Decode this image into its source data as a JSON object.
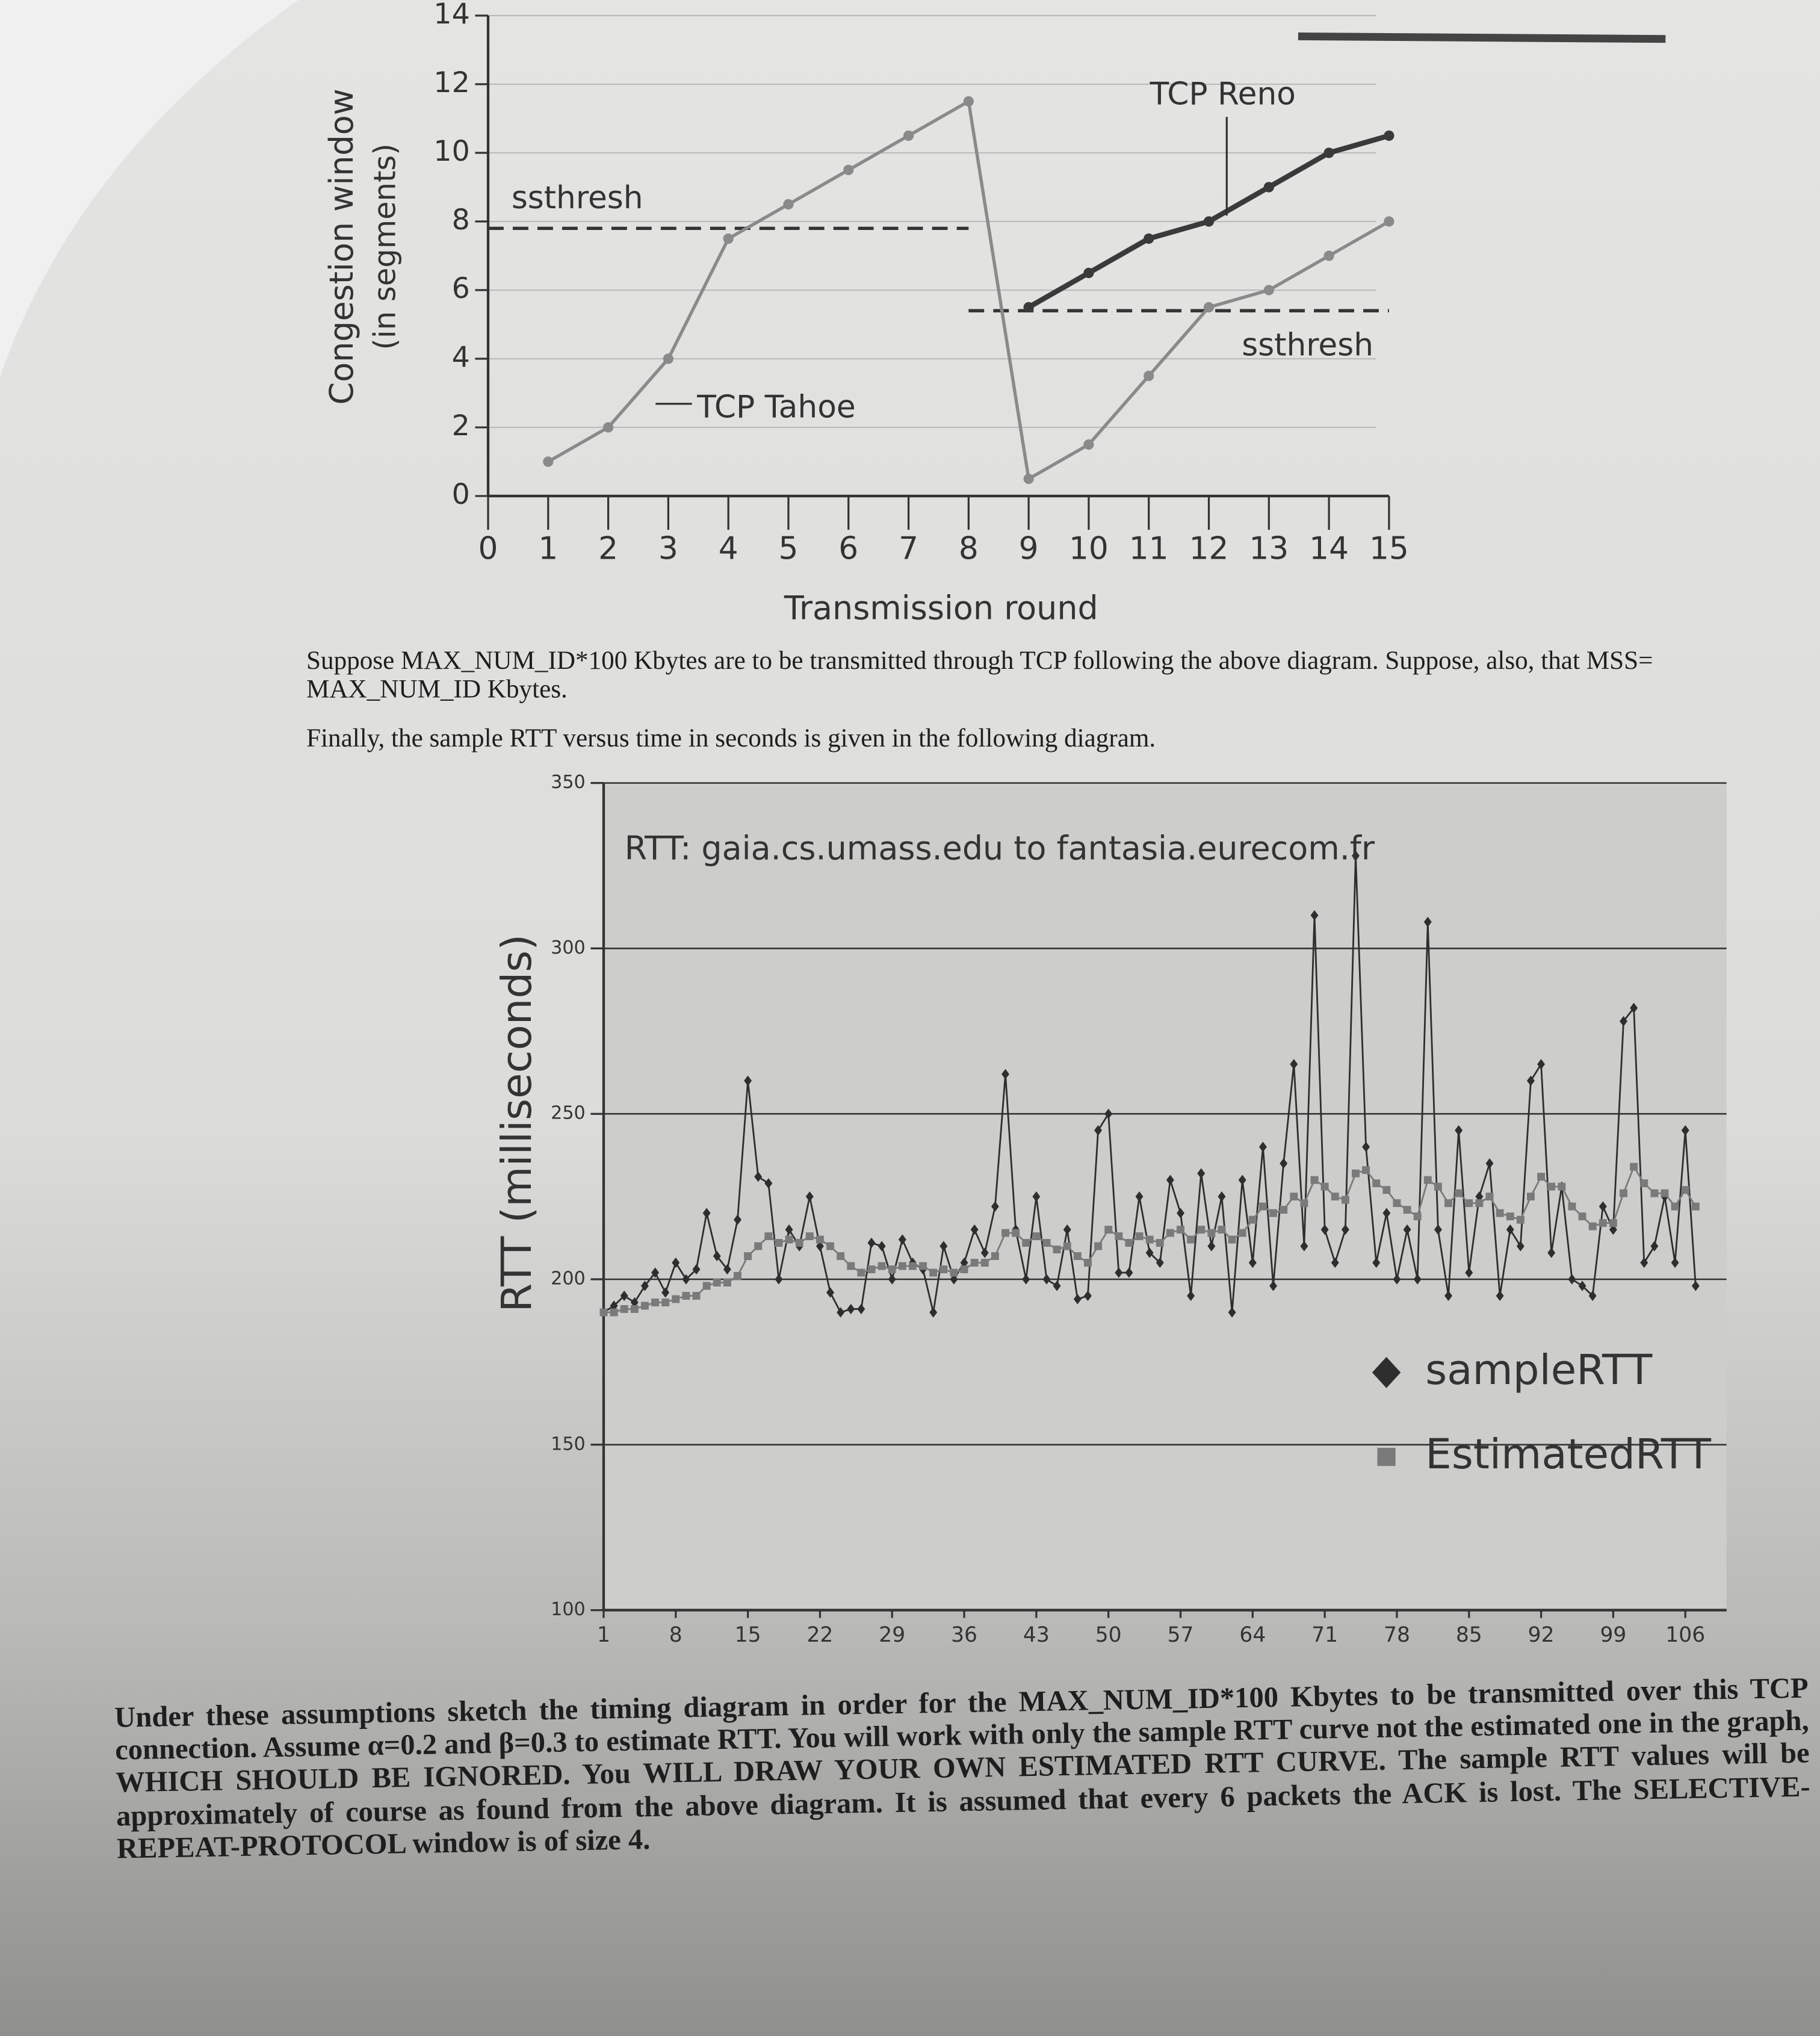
{
  "chart_data": [
    {
      "type": "line",
      "xlabel": "Transmission round",
      "ylabel": [
        "Congestion window",
        "(in segments)"
      ],
      "xlim": [
        0,
        15
      ],
      "xticks": [
        0,
        1,
        2,
        3,
        4,
        5,
        6,
        7,
        8,
        9,
        10,
        11,
        12,
        13,
        14,
        15
      ],
      "ylim": [
        0,
        14
      ],
      "yticks": [
        0,
        2,
        4,
        6,
        8,
        10,
        12,
        14
      ],
      "grid": true,
      "series": [
        {
          "name": "TCP Tahoe",
          "color": "#8a8a8a",
          "x": [
            1,
            2,
            3,
            4,
            5,
            6,
            7,
            8,
            9,
            10,
            11,
            12,
            13,
            14,
            15
          ],
          "values": [
            1,
            2,
            4,
            7.5,
            8.5,
            9.5,
            10.5,
            11.5,
            0.5,
            1.5,
            3.5,
            5.5,
            6,
            7,
            8
          ]
        },
        {
          "name": "TCP Reno",
          "color": "#3a3a3a",
          "x": [
            9,
            10,
            11,
            12,
            13,
            14,
            15
          ],
          "values": [
            5.5,
            6.5,
            7.5,
            8,
            9,
            10,
            10.5
          ]
        }
      ],
      "ssthresh_lines": [
        {
          "label": "ssthresh",
          "y": 7.8,
          "x": [
            0,
            8
          ]
        },
        {
          "label": "ssthresh",
          "y": 5.4,
          "x": [
            8,
            15
          ]
        }
      ]
    },
    {
      "type": "line",
      "title": "RTT: gaia.cs.umass.edu to fantasia.eurecom.fr",
      "ylabel": "RTT (milliseconds)",
      "xlim": [
        1,
        110
      ],
      "xticks": [
        1,
        8,
        15,
        22,
        29,
        36,
        43,
        50,
        57,
        64,
        71,
        78,
        85,
        92,
        99,
        106
      ],
      "ylim": [
        100,
        350
      ],
      "yticks": [
        100,
        150,
        200,
        250,
        300,
        350
      ],
      "grid": true,
      "legend": "right",
      "x": [
        1,
        2,
        3,
        4,
        5,
        6,
        7,
        8,
        9,
        10,
        11,
        12,
        13,
        14,
        15,
        16,
        17,
        18,
        19,
        20,
        21,
        22,
        23,
        24,
        25,
        26,
        27,
        28,
        29,
        30,
        31,
        32,
        33,
        34,
        35,
        36,
        37,
        38,
        39,
        40,
        41,
        42,
        43,
        44,
        45,
        46,
        47,
        48,
        49,
        50,
        51,
        52,
        53,
        54,
        55,
        56,
        57,
        58,
        59,
        60,
        61,
        62,
        63,
        64,
        65,
        66,
        67,
        68,
        69,
        70,
        71,
        72,
        73,
        74,
        75,
        76,
        77,
        78,
        79,
        80,
        81,
        82,
        83,
        84,
        85,
        86,
        87,
        88,
        89,
        90,
        91,
        92,
        93,
        94,
        95,
        96,
        97,
        98,
        99,
        100,
        101,
        102,
        103,
        104,
        105,
        106,
        107
      ],
      "series": [
        {
          "name": "sampleRTT",
          "color": "#2e2e2e",
          "marker": "diamond",
          "values": [
            190,
            192,
            195,
            193,
            198,
            202,
            196,
            205,
            200,
            203,
            220,
            207,
            203,
            218,
            260,
            231,
            229,
            200,
            215,
            210,
            225,
            210,
            196,
            190,
            191,
            191,
            211,
            210,
            200,
            212,
            205,
            203,
            190,
            210,
            200,
            205,
            215,
            208,
            222,
            262,
            215,
            200,
            225,
            200,
            198,
            215,
            194,
            195,
            245,
            250,
            202,
            202,
            225,
            208,
            205,
            230,
            220,
            195,
            232,
            210,
            225,
            190,
            230,
            205,
            240,
            198,
            235,
            265,
            210,
            310,
            215,
            205,
            215,
            328,
            240,
            205,
            220,
            200,
            215,
            200,
            308,
            215,
            195,
            245,
            202,
            225,
            235,
            195,
            215,
            210,
            260,
            265,
            208,
            228,
            200,
            198,
            195,
            222,
            215,
            278,
            282,
            205,
            210,
            225,
            205,
            245,
            198
          ]
        },
        {
          "name": "EstimatedRTT",
          "color": "#7a7a7a",
          "marker": "square",
          "values": [
            190,
            190,
            191,
            191,
            192,
            193,
            193,
            194,
            195,
            195,
            198,
            199,
            199,
            201,
            207,
            210,
            213,
            211,
            212,
            211,
            213,
            212,
            210,
            207,
            204,
            202,
            203,
            204,
            203,
            204,
            204,
            204,
            202,
            203,
            202,
            203,
            205,
            205,
            207,
            214,
            214,
            211,
            213,
            211,
            209,
            210,
            207,
            205,
            210,
            215,
            213,
            211,
            213,
            212,
            211,
            214,
            215,
            212,
            215,
            214,
            215,
            212,
            214,
            218,
            222,
            220,
            221,
            225,
            223,
            230,
            228,
            225,
            224,
            232,
            233,
            229,
            227,
            223,
            221,
            219,
            230,
            228,
            223,
            226,
            223,
            223,
            225,
            220,
            219,
            218,
            225,
            231,
            228,
            228,
            222,
            219,
            216,
            217,
            217,
            226,
            234,
            229,
            226,
            226,
            222,
            227,
            222
          ]
        }
      ]
    }
  ],
  "paragraphs": [
    "Suppose MAX_NUM_ID*100 Kbytes are to be transmitted through TCP following the above diagram. Suppose, also, that MSS= MAX_NUM_ID Kbytes.",
    "Finally, the sample RTT versus time in seconds is given in the following diagram.",
    "Under these assumptions sketch the timing diagram in order for the MAX_NUM_ID*100 Kbytes to be transmitted over this TCP connection. Assume α=0.2 and β=0.3 to estimate RTT. You will work with only the sample RTT curve not the estimated one in the graph, WHICH SHOULD BE IGNORED. You WILL DRAW YOUR OWN ESTIMATED RTT CURVE. The sample RTT values will be approximately of course as found from the above diagram. It is assumed that every 6 packets the ACK is lost. The SELECTIVE-REPEAT-PROTOCOL window is of size 4."
  ]
}
